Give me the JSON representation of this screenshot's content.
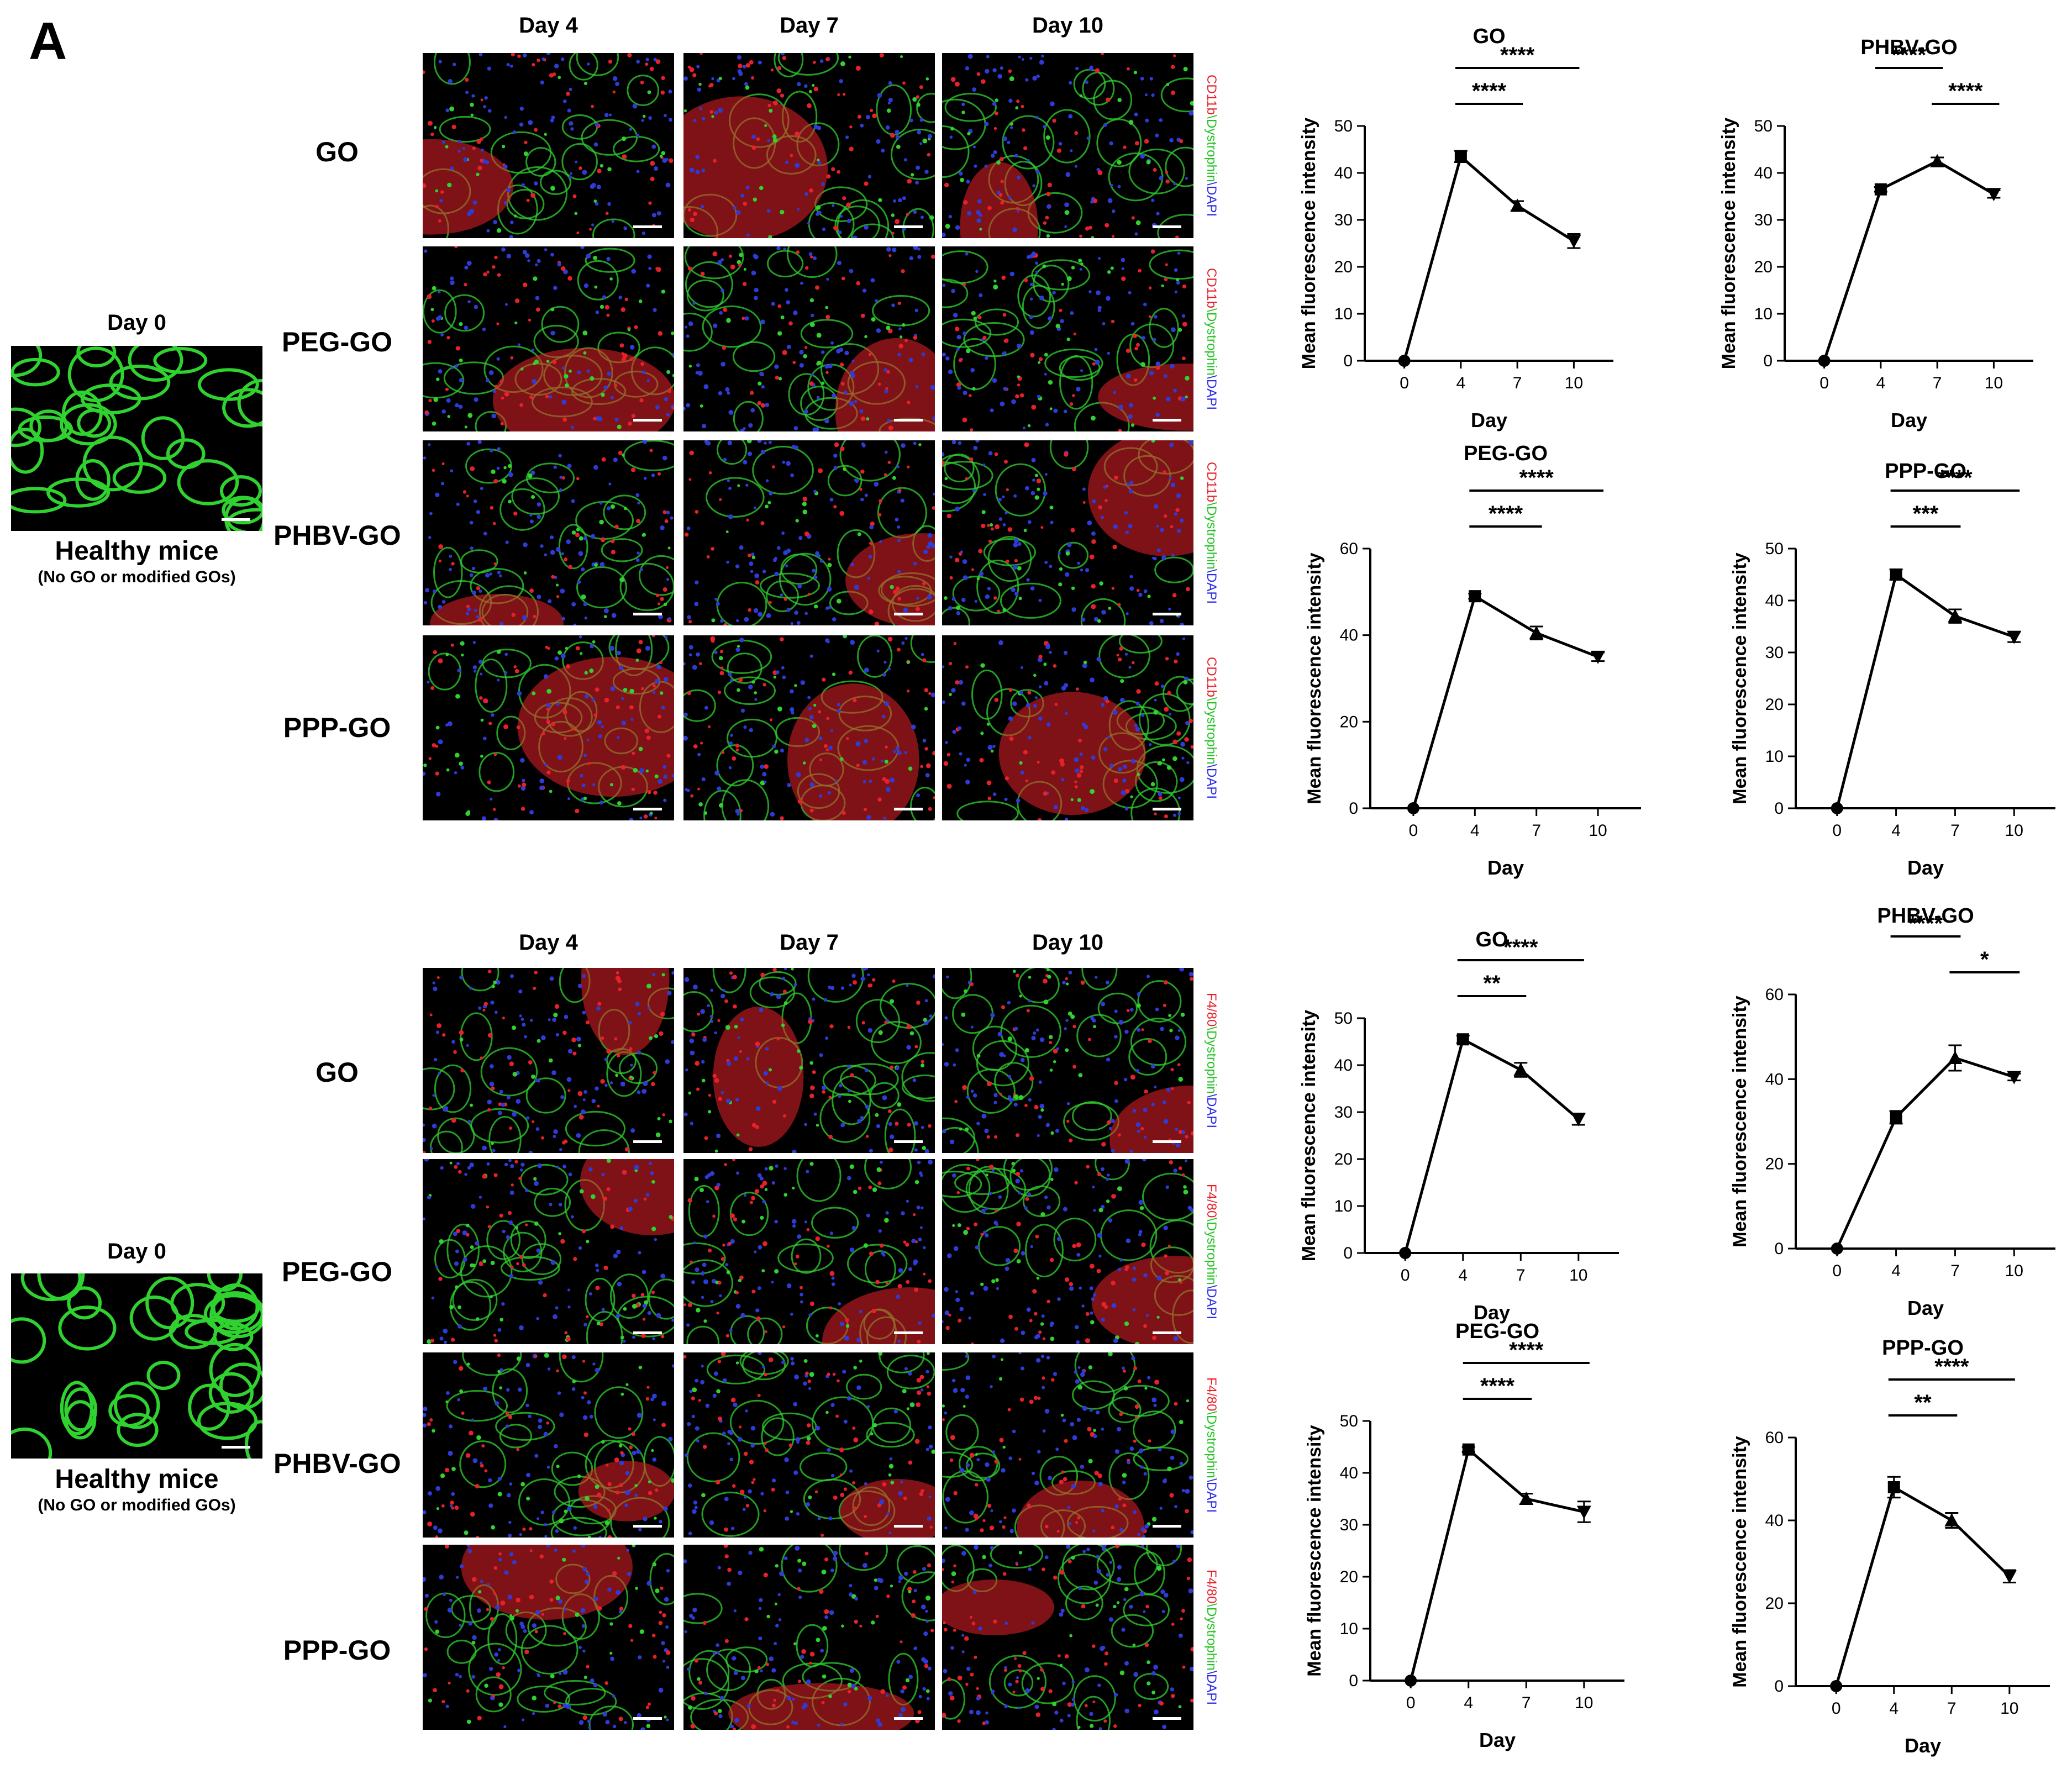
{
  "panel_label": "A",
  "day_columns": [
    "Day 4",
    "Day 7",
    "Day 10"
  ],
  "healthy": {
    "day_label": "Day 0",
    "title": "Healthy mice",
    "subtitle": "(No GO or modified GOs)"
  },
  "rows": [
    "GO",
    "PEG-GO",
    "PHBV-GO",
    "PPP-GO"
  ],
  "stain_labels": {
    "top": [
      "CD11b",
      "Dystrophin",
      "DAPI"
    ],
    "bottom": [
      "F4/80",
      "Dystrophin",
      "DAPI"
    ],
    "colors": [
      "#e8202a",
      "#22c322",
      "#2a2ae8"
    ]
  },
  "micro_colors": {
    "red": "#e8202a",
    "green": "#2fd22f",
    "blue": "#2f3bd8",
    "black": "#000000"
  },
  "chart_data": [
    {
      "type": "line",
      "title": "GO",
      "xlabel": "Day",
      "ylabel": "Mean fluorescence intensity",
      "x": [
        0,
        4,
        7,
        10
      ],
      "y": [
        0,
        43.5,
        33,
        25.5
      ],
      "err": [
        0,
        1.2,
        1,
        1.5
      ],
      "markers": [
        "circle",
        "square",
        "triangle-up",
        "triangle-down"
      ],
      "ylim": [
        0,
        50
      ],
      "yticks": [
        0,
        10,
        20,
        30,
        40,
        50
      ],
      "annotations": [
        {
          "from": 4,
          "to": 10,
          "text": "****"
        },
        {
          "from": 4,
          "to": 7,
          "text": "****"
        }
      ]
    },
    {
      "type": "line",
      "title": "PHBV-GO",
      "xlabel": "Day",
      "ylabel": "Mean fluorescence intensity",
      "x": [
        0,
        4,
        7,
        10
      ],
      "y": [
        0,
        36.5,
        42.5,
        35.5
      ],
      "err": [
        0,
        0.5,
        0.8,
        0.8
      ],
      "markers": [
        "circle",
        "square",
        "triangle-up",
        "triangle-down"
      ],
      "ylim": [
        0,
        50
      ],
      "yticks": [
        0,
        10,
        20,
        30,
        40,
        50
      ],
      "annotations": [
        {
          "from": 4,
          "to": 7,
          "text": "****"
        },
        {
          "from": 7,
          "to": 10,
          "text": "****"
        }
      ]
    },
    {
      "type": "line",
      "title": "PEG-GO",
      "xlabel": "Day",
      "ylabel": "Mean fluorescence intensity",
      "x": [
        0,
        4,
        7,
        10
      ],
      "y": [
        0,
        49,
        40.5,
        35
      ],
      "err": [
        0,
        0.6,
        1.5,
        1
      ],
      "markers": [
        "circle",
        "square",
        "triangle-up",
        "triangle-down"
      ],
      "ylim": [
        0,
        60
      ],
      "yticks": [
        0,
        20,
        40,
        60
      ],
      "annotations": [
        {
          "from": 4,
          "to": 10,
          "text": "****"
        },
        {
          "from": 4,
          "to": 7,
          "text": "****"
        }
      ]
    },
    {
      "type": "line",
      "title": "PPP-GO",
      "xlabel": "Day",
      "ylabel": "Mean fluorescence intensity",
      "x": [
        0,
        4,
        7,
        10
      ],
      "y": [
        0,
        45,
        37,
        33
      ],
      "err": [
        0,
        1,
        1.3,
        1
      ],
      "markers": [
        "circle",
        "square",
        "triangle-up",
        "triangle-down"
      ],
      "ylim": [
        0,
        50
      ],
      "yticks": [
        0,
        10,
        20,
        30,
        40,
        50
      ],
      "annotations": [
        {
          "from": 4,
          "to": 10,
          "text": "****"
        },
        {
          "from": 4,
          "to": 7,
          "text": "***"
        }
      ]
    },
    {
      "type": "line",
      "title": "GO",
      "xlabel": "Day",
      "ylabel": "Mean fluorescence intensity",
      "x": [
        0,
        4,
        7,
        10
      ],
      "y": [
        0,
        45.5,
        39,
        28.5
      ],
      "err": [
        0,
        0.8,
        1.5,
        1.2
      ],
      "markers": [
        "circle",
        "square",
        "triangle-up",
        "triangle-down"
      ],
      "ylim": [
        0,
        50
      ],
      "yticks": [
        0,
        10,
        20,
        30,
        40,
        50
      ],
      "annotations": [
        {
          "from": 4,
          "to": 10,
          "text": "****"
        },
        {
          "from": 4,
          "to": 7,
          "text": "**"
        }
      ]
    },
    {
      "type": "line",
      "title": "PHBV-GO",
      "xlabel": "Day",
      "ylabel": "Mean fluorescence intensity",
      "x": [
        0,
        4,
        7,
        10
      ],
      "y": [
        0,
        31,
        45,
        40.5
      ],
      "err": [
        0,
        1.5,
        3,
        0.8
      ],
      "markers": [
        "circle",
        "square",
        "triangle-up",
        "triangle-down"
      ],
      "ylim": [
        0,
        60
      ],
      "yticks": [
        0,
        20,
        40,
        60
      ],
      "annotations": [
        {
          "from": 4,
          "to": 7,
          "text": "****"
        },
        {
          "from": 7,
          "to": 10,
          "text": "*"
        }
      ]
    },
    {
      "type": "line",
      "title": "PEG-GO",
      "xlabel": "Day",
      "ylabel": "Mean fluorescence intensity",
      "x": [
        0,
        4,
        7,
        10
      ],
      "y": [
        0,
        44.5,
        35,
        32.5
      ],
      "err": [
        0,
        0.5,
        1,
        2
      ],
      "markers": [
        "circle",
        "square",
        "triangle-up",
        "triangle-down"
      ],
      "ylim": [
        0,
        50
      ],
      "yticks": [
        0,
        10,
        20,
        30,
        40,
        50
      ],
      "annotations": [
        {
          "from": 4,
          "to": 10,
          "text": "****"
        },
        {
          "from": 4,
          "to": 7,
          "text": "****"
        }
      ]
    },
    {
      "type": "line",
      "title": "PPP-GO",
      "xlabel": "Day",
      "ylabel": "Mean fluorescence intensity",
      "x": [
        0,
        4,
        7,
        10
      ],
      "y": [
        0,
        48,
        40,
        26.5
      ],
      "err": [
        0,
        2.5,
        1.8,
        1.5
      ],
      "markers": [
        "circle",
        "square",
        "triangle-up",
        "triangle-down"
      ],
      "ylim": [
        0,
        60
      ],
      "yticks": [
        0,
        20,
        40,
        60
      ],
      "annotations": [
        {
          "from": 4,
          "to": 10,
          "text": "****"
        },
        {
          "from": 4,
          "to": 7,
          "text": "**"
        }
      ]
    }
  ]
}
